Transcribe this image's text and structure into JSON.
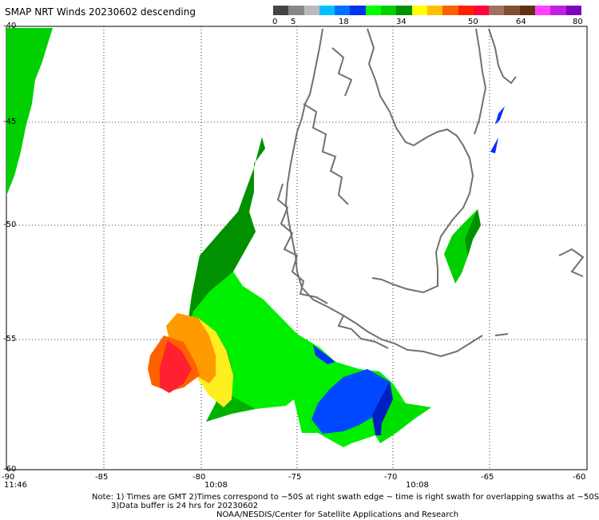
{
  "title": "SMAP NRT Winds  20230602 descending",
  "colorbar": {
    "colors": [
      "#444444",
      "#888888",
      "#bbbbbb",
      "#00c0ff",
      "#0070ff",
      "#0030f0",
      "#00ff00",
      "#00d000",
      "#009000",
      "#ffff00",
      "#ffc000",
      "#ff6000",
      "#ff2000",
      "#ff0040",
      "#a07060",
      "#805030",
      "#603010",
      "#ff40ff",
      "#c020e0",
      "#8000c0"
    ],
    "ticks": [
      "0",
      "5",
      "18",
      "34",
      "50",
      "64",
      "80"
    ]
  },
  "lat_labels": [
    "-40",
    "-45",
    "-50",
    "-55",
    "-60"
  ],
  "lon_labels": [
    "-90",
    "-85",
    "-80",
    "-75",
    "-70",
    "-65",
    "-60"
  ],
  "times": [
    "11:46",
    "10:08",
    "10:08"
  ],
  "notes": {
    "line1": "Note: 1) Times are GMT 2)Times correspond to ~50S at right swath edge ~ time is right swath for overlapping swaths at ~50S",
    "line2": "3)Data buffer is 24 hrs for 20230602",
    "line3": "NOAA/NESDIS/Center for Satellite Applications and Research"
  },
  "wind_colors": {
    "green_dark": "#009000",
    "green": "#00d000",
    "green_light": "#00ff00",
    "blue": "#0040ff",
    "blue_dark": "#0020c0",
    "yellow": "#ffff20",
    "orange": "#ff9000",
    "red": "#ff2030",
    "coast": "#707070"
  }
}
